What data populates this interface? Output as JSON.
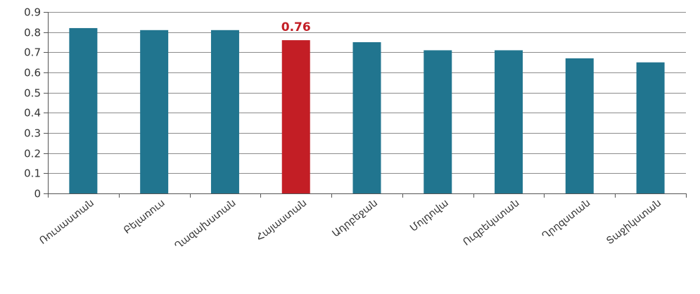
{
  "chart_data": {
    "type": "bar",
    "categories": [
      "Ռուսաստան",
      "Բելառուս",
      "Ղազախստան",
      "Հայաստան",
      "Ադրբեջան",
      "Մոլդովա",
      "Ուզբեկստան",
      "Ղրղզստան",
      "Տաջիկստան"
    ],
    "values": [
      0.82,
      0.81,
      0.81,
      0.76,
      0.75,
      0.71,
      0.71,
      0.67,
      0.65
    ],
    "ylim": [
      0,
      0.9
    ],
    "y_ticks": [
      "0",
      "0.1",
      "0.2",
      "0.3",
      "0.4",
      "0.5",
      "0.6",
      "0.7",
      "0.8",
      "0.9"
    ],
    "highlight_index": 3,
    "highlight_label": "0.76",
    "grid": true,
    "legend": false,
    "colors": {
      "bar": "#21758f",
      "highlight": "#c31e25",
      "label": "#c31e25"
    }
  }
}
